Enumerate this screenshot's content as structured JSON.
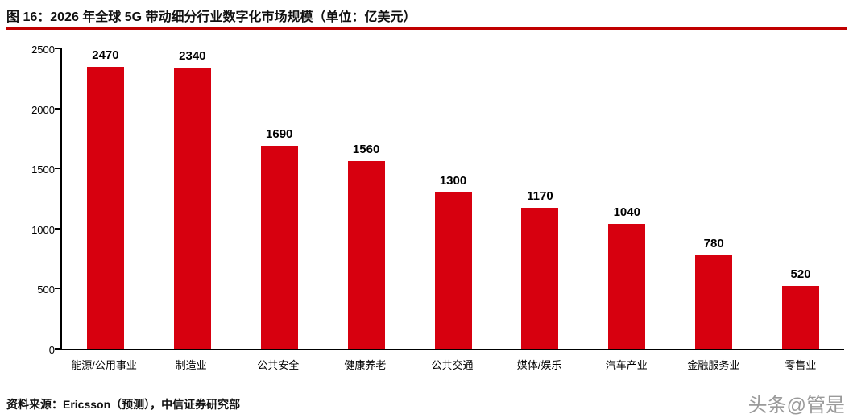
{
  "colors": {
    "accent_rule": "#c00000",
    "bar": "#d7000f",
    "axis": "#000000",
    "watermark_text": "#9a9a9a"
  },
  "footer": {
    "source": "资料来源：Ericsson（预测），中信证券研究部",
    "watermark": "头条@管是"
  },
  "chart_data": {
    "type": "bar",
    "title": "图 16：2026 年全球 5G 带动细分行业数字化市场规模（单位：亿美元）",
    "categories": [
      "能源/公用事业",
      "制造业",
      "公共安全",
      "健康养老",
      "公共交通",
      "媒体/娱乐",
      "汽车产业",
      "金融服务业",
      "零售业"
    ],
    "values": [
      2470,
      2340,
      1690,
      1560,
      1300,
      1170,
      1040,
      780,
      520
    ],
    "xlabel": "",
    "ylabel": "",
    "ylim": [
      0,
      2500
    ],
    "yticks": [
      0,
      500,
      1000,
      1500,
      2000,
      2500
    ],
    "grid": false,
    "legend": "none",
    "bar_color": "#d7000f"
  }
}
